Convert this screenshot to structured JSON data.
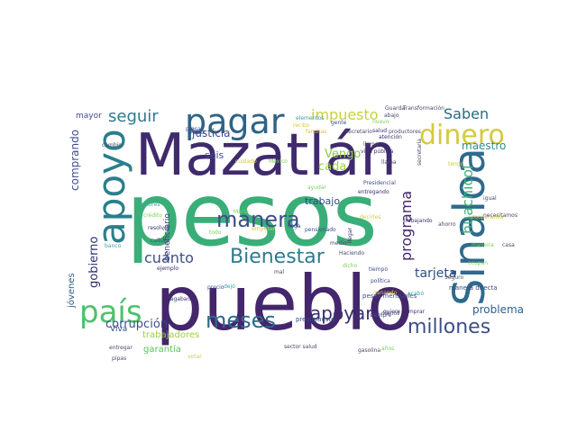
{
  "figure": {
    "words": [
      {
        "text": "pesos",
        "color": "#3aae78"
      },
      {
        "text": "pueblo",
        "color": "#43266b"
      },
      {
        "text": "Mazatlán",
        "color": "#3f2a6d"
      },
      {
        "text": "Sinaloa",
        "color": "#2f6a8c"
      },
      {
        "text": "apoyo",
        "color": "#2b7e8b"
      },
      {
        "text": "pagar",
        "color": "#2f6386"
      },
      {
        "text": "dinero",
        "color": "#d3ca3e"
      },
      {
        "text": "país",
        "color": "#4cc26c"
      },
      {
        "text": "meses",
        "color": "#2f6a8c"
      },
      {
        "text": "manera",
        "color": "#3d4d8a"
      },
      {
        "text": "Bienestar",
        "color": "#2f7a8e"
      },
      {
        "text": "millones",
        "color": "#3d4f86"
      },
      {
        "text": "apoyar",
        "color": "#3a2f6d"
      },
      {
        "text": "seguir",
        "color": "#2f7a8e"
      },
      {
        "text": "impuesto",
        "color": "#c7d23b"
      },
      {
        "text": "Saben",
        "color": "#2a6b85"
      },
      {
        "text": "cuánto",
        "color": "#3d4d8a"
      },
      {
        "text": "huachicol",
        "color": "#3db37a"
      },
      {
        "text": "programa",
        "color": "#43266b"
      },
      {
        "text": "tarjeta",
        "color": "#2f4f86"
      },
      {
        "text": "corrupción",
        "color": "#3d4d8a"
      },
      {
        "text": "problema",
        "color": "#2f5f8a"
      },
      {
        "text": "gobierno",
        "color": "#2f2f6f"
      },
      {
        "text": "comprando",
        "color": "#3d4d8a"
      },
      {
        "text": "maestro",
        "color": "#2a8f8a"
      },
      {
        "text": "cada",
        "color": "#9fd33d"
      },
      {
        "text": "Vengo",
        "color": "#8ccf40"
      },
      {
        "text": "trabajo",
        "color": "#2f4f86"
      },
      {
        "text": "justicia",
        "color": "#3d4d8a"
      },
      {
        "text": "seis",
        "color": "#3d4d8a"
      },
      {
        "text": "jóvenes",
        "color": "#2f5f8a"
      },
      {
        "text": "beneficiario",
        "color": "#3d3f7a"
      },
      {
        "text": "trabajadores",
        "color": "#9ccf3f"
      },
      {
        "text": "garantía",
        "color": "#5cc05e"
      },
      {
        "text": "Viva",
        "color": "#2f4f86"
      },
      {
        "text": "mayor",
        "color": "#3d4d8a"
      },
      {
        "text": "peso",
        "color": "#3d4d8a"
      },
      {
        "text": "cambio",
        "color": "#4a4a6a"
      },
      {
        "text": "entregar",
        "color": "#4a4a6a"
      },
      {
        "text": "ejemplo",
        "color": "#3a2f6d"
      },
      {
        "text": "resolver",
        "color": "#3a2f6d"
      },
      {
        "text": "cultura",
        "color": "#4a4a6a"
      },
      {
        "text": "crédito",
        "color": "#7bd15a"
      },
      {
        "text": "banco",
        "color": "#3aa1a0"
      },
      {
        "text": "pagaban",
        "color": "#3a2f6d"
      },
      {
        "text": "pipas",
        "color": "#4a4a6a"
      },
      {
        "text": "votar",
        "color": "#d3ca3e"
      },
      {
        "text": "precio",
        "color": "#3d4d8a"
      },
      {
        "text": "dejó",
        "color": "#3aa1a0"
      },
      {
        "text": "mal",
        "color": "#4a4a6a"
      },
      {
        "text": "presupuesto",
        "color": "#2f4f86"
      },
      {
        "text": "sector salud",
        "color": "#4a4a6a"
      },
      {
        "text": "quiere comprar",
        "color": "#3a2f6d"
      },
      {
        "text": "gasolina",
        "color": "#4a4a6a"
      },
      {
        "text": "años",
        "color": "#7bd15a"
      },
      {
        "text": "siempre",
        "color": "#3d4d8a"
      },
      {
        "text": "pesos mensuales",
        "color": "#3d4d8a"
      },
      {
        "text": "política",
        "color": "#3d4d8a"
      },
      {
        "text": "tiempo",
        "color": "#3d4d8a"
      },
      {
        "text": "ganando",
        "color": "#d3ca3e"
      },
      {
        "text": "acabó",
        "color": "#3aa1a0"
      },
      {
        "text": "manera directa",
        "color": "#3d4d8a"
      },
      {
        "text": "Seguro",
        "color": "#4a4a6a"
      },
      {
        "text": "menos",
        "color": "#4a4a6a"
      },
      {
        "text": "Haciendo",
        "color": "#4a4a6a"
      },
      {
        "text": "medio",
        "color": "#4a4a6a"
      },
      {
        "text": "llega",
        "color": "#3d4d8a"
      },
      {
        "text": "llegar",
        "color": "#3a2f6d"
      },
      {
        "text": "dicho",
        "color": "#7bd15a"
      },
      {
        "text": "decirles",
        "color": "#d3ca3e"
      },
      {
        "text": "trabajando",
        "color": "#3a2f6d"
      },
      {
        "text": "ahorro",
        "color": "#4a4a6a"
      },
      {
        "text": "igual",
        "color": "#4a4a6a"
      },
      {
        "text": "necesitamos",
        "color": "#4a4a6a"
      },
      {
        "text": "casa",
        "color": "#4a4a6a"
      },
      {
        "text": "Guarda",
        "color": "#4a4a6a"
      },
      {
        "text": "Transformación",
        "color": "#4a4a6a"
      },
      {
        "text": "abajo",
        "color": "#4a4a6a"
      },
      {
        "text": "gente",
        "color": "#3d4d8a"
      },
      {
        "text": "llamo",
        "color": "#4a4a6a"
      },
      {
        "text": "secretario",
        "color": "#4a4a6a"
      },
      {
        "text": "salud",
        "color": "#3a2f6d"
      },
      {
        "text": "productores",
        "color": "#4a4a6a"
      },
      {
        "text": "atención",
        "color": "#3a2f6d"
      },
      {
        "text": "vida pública",
        "color": "#3a2f6d"
      },
      {
        "text": "llama",
        "color": "#4a4a6a"
      },
      {
        "text": "secretaria",
        "color": "#4a4a6a"
      },
      {
        "text": "Presidencial",
        "color": "#3d4d8a"
      },
      {
        "text": "entregando",
        "color": "#3a2f6d"
      },
      {
        "text": "cuidado",
        "color": "#d3ca3e"
      },
      {
        "text": "México",
        "color": "#7bd15a"
      },
      {
        "text": "María",
        "color": "#7bd15a"
      },
      {
        "text": "pensionado",
        "color": "#3d4d8a"
      },
      {
        "text": "empezar",
        "color": "#d3ca3e"
      },
      {
        "text": "todo",
        "color": "#7bd15a"
      },
      {
        "text": "pobres",
        "color": "#3aa1a0"
      },
      {
        "text": "elementos",
        "color": "#3aa1a0"
      },
      {
        "text": "recibo",
        "color": "#d3ca3e"
      },
      {
        "text": "presa",
        "color": "#3d4d8a"
      },
      {
        "text": "cooperativa",
        "color": "#d3ca3e"
      },
      {
        "text": "maneira",
        "color": "#7bd15a"
      },
      {
        "text": "ocupan",
        "color": "#7bd15a"
      },
      {
        "text": "familias",
        "color": "#d3ca3e"
      },
      {
        "text": "ayudar",
        "color": "#7bd15a"
      },
      {
        "text": "tengo",
        "color": "#d3ca3e"
      },
      {
        "text": "nuevo",
        "color": "#7bd15a"
      }
    ]
  }
}
